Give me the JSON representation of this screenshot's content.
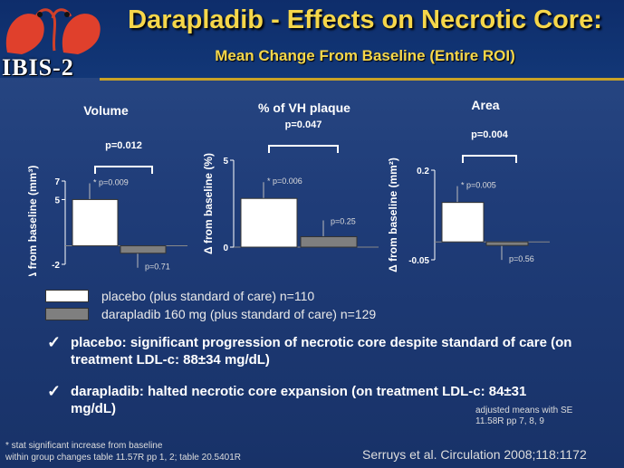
{
  "header": {
    "logo_text": "IBIS-2",
    "title": "Darapladib - Effects on Necrotic Core:",
    "subtitle": "Mean Change From Baseline (Entire ROI)"
  },
  "colors": {
    "placebo": "#ffffff",
    "darapladib": "#7f7f7f",
    "title": "#f6d74a"
  },
  "chart_data": [
    {
      "type": "bar",
      "title": "Volume",
      "ylabel": "Δ from baseline (mm³)",
      "ylim": [
        -2,
        7
      ],
      "yticks": [
        "7",
        "5",
        "-2"
      ],
      "categories": [
        "placebo",
        "darapladib"
      ],
      "values": [
        5.0,
        -0.8
      ],
      "p_between": "p=0.012",
      "p_within": [
        "* p=0.009",
        "p=0.71"
      ]
    },
    {
      "type": "bar",
      "title": "% of VH plaque",
      "ylabel": "Δ from baseline (%)",
      "ylim": [
        0,
        5
      ],
      "yticks": [
        "5",
        "0"
      ],
      "categories": [
        "placebo",
        "darapladib"
      ],
      "values": [
        2.8,
        0.6
      ],
      "p_between": "p=0.047",
      "p_within": [
        "* p=0.006",
        "p=0.25"
      ]
    },
    {
      "type": "bar",
      "title": "Area",
      "ylabel": "Δ from baseline (mm²)",
      "ylim": [
        -0.05,
        0.2
      ],
      "yticks": [
        "0.2",
        "-0.05"
      ],
      "categories": [
        "placebo",
        "darapladib"
      ],
      "values": [
        0.11,
        -0.01
      ],
      "p_between": "p=0.004",
      "p_within": [
        "* p=0.005",
        "p=0.56"
      ]
    }
  ],
  "legend": {
    "placebo": "placebo (plus standard of care) n=110",
    "darapladib": "darapladib 160 mg (plus standard of care) n=129"
  },
  "bullets": [
    {
      "check": "✓",
      "text": "placebo: significant progression of necrotic core despite standard of care (on treatment LDL-c: 88±34 mg/dL)"
    },
    {
      "check": "✓",
      "text": "darapladib: halted necrotic core expansion (on treatment LDL-c: 84±31 mg/dL)"
    }
  ],
  "notes": {
    "right_line1": "adjusted means with SE",
    "right_line2": "11.58R pp 7, 8, 9",
    "foot_line1": "* stat significant increase from baseline",
    "foot_line2": "within group changes table 11.57R pp 1, 2; table 20.5401R",
    "citation": "Serruys et al. Circulation 2008;118:1172"
  }
}
